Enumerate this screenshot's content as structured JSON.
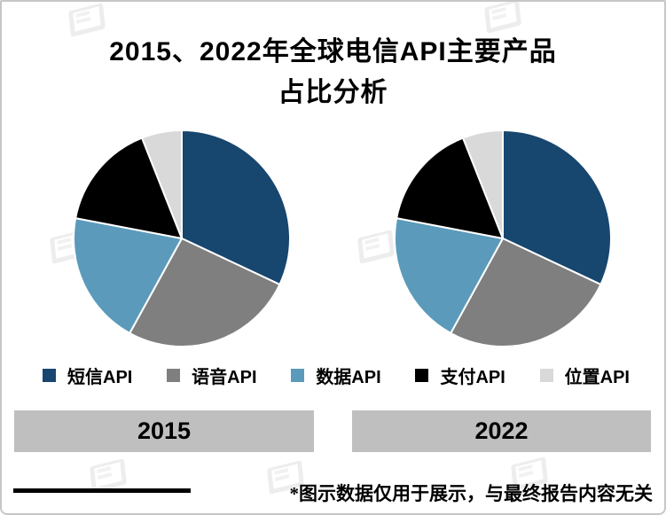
{
  "title": {
    "line1": "2015、2022年全球电信API主要产品",
    "line2": "占比分析"
  },
  "legend": {
    "items": [
      {
        "label": "短信API",
        "color": "#17466F"
      },
      {
        "label": "语音API",
        "color": "#7F7F7F"
      },
      {
        "label": "数据API",
        "color": "#5B9ABA"
      },
      {
        "label": "支付API",
        "color": "#000000"
      },
      {
        "label": "位置API",
        "color": "#D9D9D9"
      }
    ]
  },
  "year_bars": [
    {
      "label": "2015"
    },
    {
      "label": "2022"
    }
  ],
  "footer": {
    "note": "*图示数据仅用于展示，与最终报告内容无关"
  },
  "colors": {
    "bar_background": "#BFBFBF",
    "frame_border": "#C6C6C6",
    "slice_separator": "#FFFFFF"
  },
  "chart_data": [
    {
      "type": "pie",
      "title": "2015",
      "categories": [
        "短信API",
        "语音API",
        "数据API",
        "支付API",
        "位置API"
      ],
      "values": [
        32,
        26,
        20,
        16,
        6
      ],
      "units": "percent",
      "colors": [
        "#17466F",
        "#7F7F7F",
        "#5B9ABA",
        "#000000",
        "#D9D9D9"
      ],
      "start_angle_deg": 0,
      "direction": "clockwise",
      "legend_position": "bottom"
    },
    {
      "type": "pie",
      "title": "2022",
      "categories": [
        "短信API",
        "语音API",
        "数据API",
        "支付API",
        "位置API"
      ],
      "values": [
        32,
        26,
        20,
        16,
        6
      ],
      "units": "percent",
      "colors": [
        "#17466F",
        "#7F7F7F",
        "#5B9ABA",
        "#000000",
        "#D9D9D9"
      ],
      "start_angle_deg": 0,
      "direction": "clockwise",
      "legend_position": "bottom"
    }
  ]
}
